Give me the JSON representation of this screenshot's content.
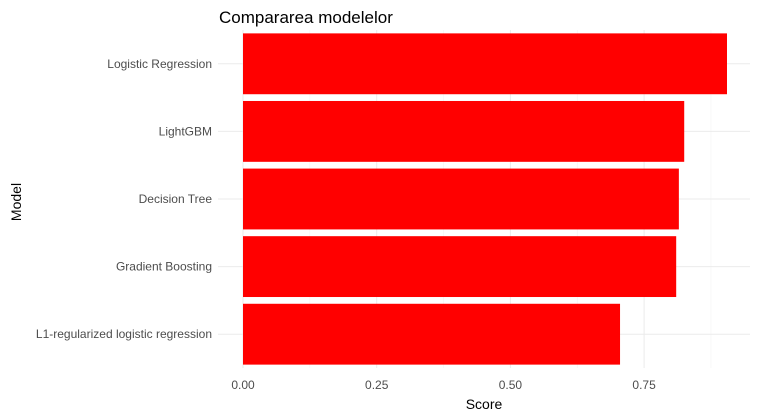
{
  "chart_data": {
    "type": "bar",
    "orientation": "horizontal",
    "title": "Compararea modelelor",
    "xlabel": "Score",
    "ylabel": "Model",
    "categories": [
      "Logistic Regression",
      "LightGBM",
      "Decision Tree",
      "Gradient Boosting",
      "L1-regularized logistic regression"
    ],
    "values": [
      0.905,
      0.825,
      0.815,
      0.81,
      0.705
    ],
    "xlim": [
      0,
      0.905
    ],
    "xticks": [
      0.0,
      0.25,
      0.5,
      0.75
    ],
    "xtick_labels": [
      "0.00",
      "0.25",
      "0.50",
      "0.75"
    ],
    "grid": true,
    "bar_color": "#ff0000",
    "legend": "none"
  }
}
